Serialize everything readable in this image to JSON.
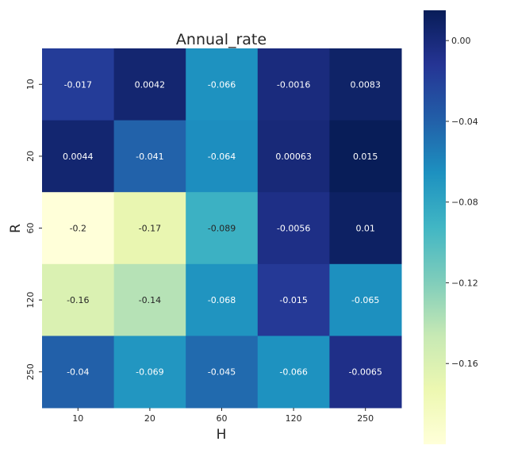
{
  "chart_data": {
    "type": "heatmap",
    "title": "Annual_rate",
    "xlabel": "H",
    "ylabel": "R",
    "x_categories": [
      "10",
      "20",
      "60",
      "120",
      "250"
    ],
    "y_categories": [
      "10",
      "20",
      "60",
      "120",
      "250"
    ],
    "values": [
      [
        -0.017,
        0.0042,
        -0.066,
        -0.0016,
        0.0083
      ],
      [
        0.0044,
        -0.041,
        -0.064,
        0.00063,
        0.015
      ],
      [
        -0.2,
        -0.17,
        -0.089,
        -0.0056,
        0.01
      ],
      [
        -0.16,
        -0.14,
        -0.068,
        -0.015,
        -0.065
      ],
      [
        -0.04,
        -0.069,
        -0.045,
        -0.066,
        -0.0065
      ]
    ],
    "cell_labels": [
      [
        "-0.017",
        "0.0042",
        "-0.066",
        "-0.0016",
        "0.0083"
      ],
      [
        "0.0044",
        "-0.041",
        "-0.064",
        "0.00063",
        "0.015"
      ],
      [
        "-0.2",
        "-0.17",
        "-0.089",
        "-0.0056",
        "0.01"
      ],
      [
        "-0.16",
        "-0.14",
        "-0.068",
        "-0.015",
        "-0.065"
      ],
      [
        "-0.04",
        "-0.069",
        "-0.045",
        "-0.066",
        "-0.0065"
      ]
    ],
    "colormap": "YlGnBu",
    "vmin": -0.2,
    "vmax": 0.015,
    "colorbar_ticks": [
      0.0,
      -0.04,
      -0.08,
      -0.12,
      -0.16
    ],
    "colorbar_tick_labels": [
      "0.00",
      "−0.04",
      "−0.08",
      "−0.12",
      "−0.16"
    ],
    "colorbar_position": "right",
    "grid": false
  }
}
